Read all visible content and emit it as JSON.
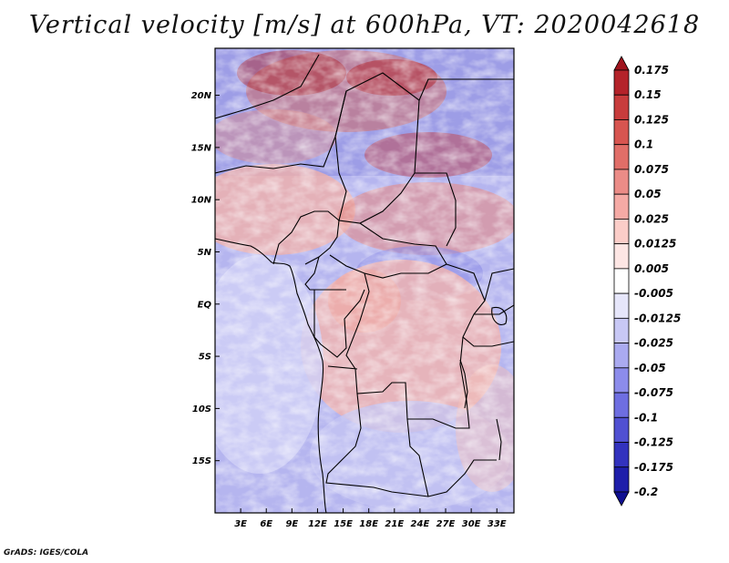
{
  "title": "Vertical velocity [m/s] at 600hPa, VT: 2020042618",
  "credit": "GrADS: IGES/COLA",
  "map": {
    "variable": "Vertical velocity",
    "units": "m/s",
    "level": "600hPa",
    "valid_time": "2020042618",
    "lat_labels": [
      "20N",
      "15N",
      "10N",
      "5N",
      "EQ",
      "5S",
      "10S",
      "15S"
    ],
    "lon_labels": [
      "3E",
      "6E",
      "9E",
      "12E",
      "15E",
      "18E",
      "21E",
      "24E",
      "27E",
      "30E",
      "33E"
    ],
    "lat_values": [
      20,
      15,
      10,
      5,
      0,
      -5,
      -10,
      -15
    ],
    "lon_values": [
      3,
      6,
      9,
      12,
      15,
      18,
      21,
      24,
      27,
      30,
      33
    ],
    "lat_range": [
      -20,
      24.5
    ],
    "lon_range": [
      0,
      35
    ]
  },
  "colorbar": {
    "labels": [
      "0.175",
      "0.15",
      "0.125",
      "0.1",
      "0.075",
      "0.05",
      "0.025",
      "0.0125",
      "0.005",
      "-0.005",
      "-0.0125",
      "-0.025",
      "-0.05",
      "-0.075",
      "-0.1",
      "-0.125",
      "-0.175",
      "-0.2"
    ],
    "colors": [
      "#a0141e",
      "#b4232a",
      "#c83c3c",
      "#d75550",
      "#e16e68",
      "#eb8c87",
      "#f5aaa5",
      "#fbcdc8",
      "#fde6e4",
      "#ffffff",
      "#e6e6fa",
      "#c8c8f5",
      "#aaaaf0",
      "#8c8ceb",
      "#6e6ee1",
      "#5050d2",
      "#3232be",
      "#1e1eaa",
      "#0f0f91"
    ]
  }
}
